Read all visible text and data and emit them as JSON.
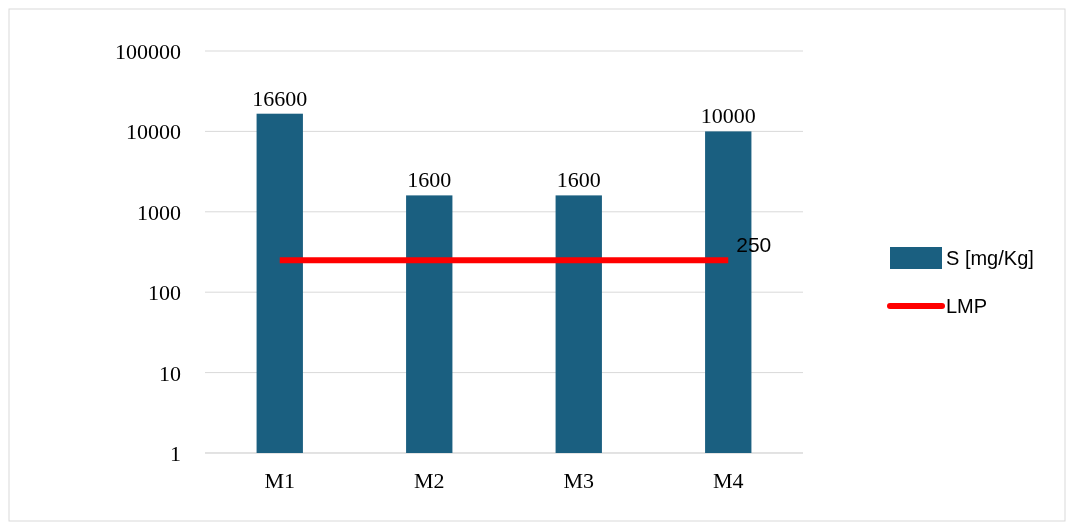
{
  "chart_data": {
    "type": "bar",
    "log": "y",
    "categories": [
      "M1",
      "M2",
      "M3",
      "M4"
    ],
    "series": [
      {
        "name": "S [mg/Kg]",
        "color": "#1a5f80",
        "values": [
          16600,
          1600,
          1600,
          10000
        ],
        "value_labels": [
          "16600",
          "1600",
          "1600",
          "10000"
        ]
      },
      {
        "name": "LMP",
        "type": "line",
        "color": "#ff0000",
        "values": [
          250,
          250,
          250,
          250
        ],
        "value_labels": [
          null,
          null,
          null,
          "250"
        ]
      }
    ],
    "ylim": [
      1,
      100000
    ],
    "yticks": [
      1,
      10,
      100,
      1000,
      10000,
      100000
    ],
    "grid": "y",
    "legend": "right"
  }
}
